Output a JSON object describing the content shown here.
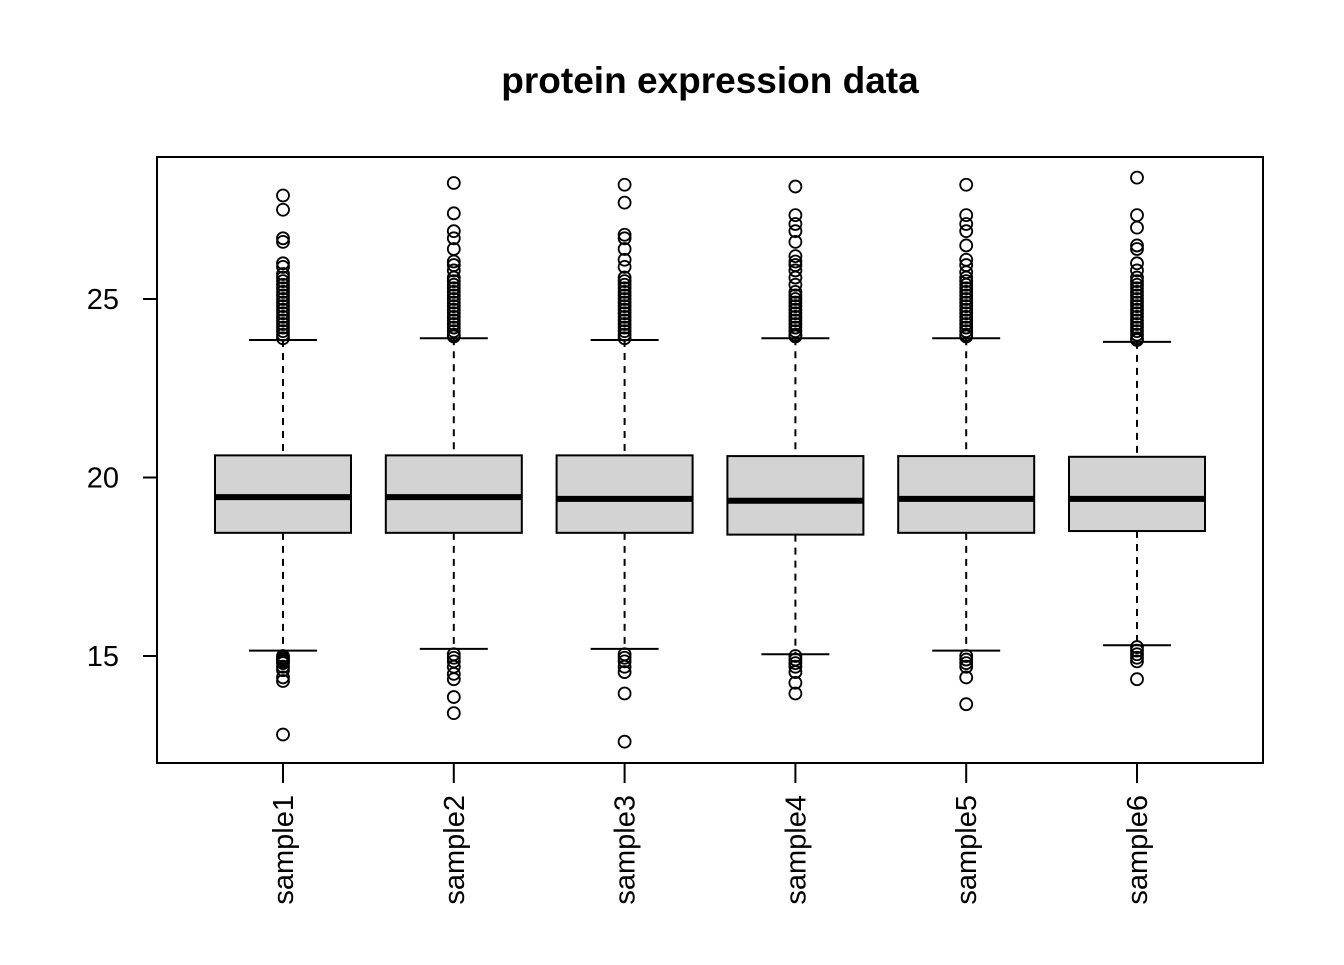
{
  "chart_data": {
    "type": "boxplot",
    "title": "protein expression data",
    "xlabel": "",
    "ylabel": "",
    "ylim": [
      12.3,
      29.3
    ],
    "y_ticks": [
      "15",
      "20",
      "25"
    ],
    "categories": [
      "sample1",
      "sample2",
      "sample3",
      "sample4",
      "sample5",
      "sample6"
    ],
    "box_fill": "#d3d3d3",
    "line_color": "#000000",
    "series": [
      {
        "lower_whisker": 15.15,
        "q1": 18.45,
        "median": 19.45,
        "q3": 20.62,
        "upper_whisker": 23.85,
        "outliers_high": [
          23.9,
          24.0,
          24.1,
          24.2,
          24.3,
          24.4,
          24.5,
          24.6,
          24.7,
          24.8,
          24.9,
          25.0,
          25.1,
          25.2,
          25.3,
          25.4,
          25.5,
          25.6,
          25.7,
          25.9,
          26.0,
          26.6,
          26.7,
          27.5,
          27.9
        ],
        "outliers_low": [
          15.0,
          14.95,
          14.9,
          14.85,
          14.8,
          14.7,
          14.6,
          14.4,
          14.3,
          12.8
        ]
      },
      {
        "lower_whisker": 15.2,
        "q1": 18.45,
        "median": 19.45,
        "q3": 20.62,
        "upper_whisker": 23.9,
        "outliers_high": [
          23.95,
          24.0,
          24.1,
          24.2,
          24.3,
          24.4,
          24.5,
          24.6,
          24.7,
          24.8,
          24.9,
          25.0,
          25.1,
          25.2,
          25.3,
          25.4,
          25.5,
          25.6,
          25.8,
          25.95,
          26.05,
          26.4,
          26.7,
          26.9,
          27.4,
          28.25
        ],
        "outliers_low": [
          15.05,
          14.95,
          14.85,
          14.7,
          14.5,
          14.35,
          13.85,
          13.4
        ]
      },
      {
        "lower_whisker": 15.2,
        "q1": 18.45,
        "median": 19.4,
        "q3": 20.62,
        "upper_whisker": 23.85,
        "outliers_high": [
          23.9,
          24.0,
          24.1,
          24.2,
          24.3,
          24.4,
          24.5,
          24.6,
          24.7,
          24.8,
          24.9,
          25.0,
          25.1,
          25.2,
          25.3,
          25.4,
          25.5,
          25.6,
          25.9,
          26.1,
          26.4,
          26.7,
          26.8,
          27.7,
          28.2
        ],
        "outliers_low": [
          15.05,
          14.95,
          14.85,
          14.7,
          14.55,
          13.95,
          12.6
        ]
      },
      {
        "lower_whisker": 15.05,
        "q1": 18.4,
        "median": 19.35,
        "q3": 20.6,
        "upper_whisker": 23.9,
        "outliers_high": [
          23.95,
          24.0,
          24.1,
          24.2,
          24.3,
          24.4,
          24.5,
          24.6,
          24.7,
          24.8,
          24.9,
          25.0,
          25.1,
          25.2,
          25.4,
          25.6,
          25.8,
          25.95,
          26.05,
          26.2,
          26.6,
          26.9,
          27.1,
          27.35,
          28.15
        ],
        "outliers_low": [
          15.0,
          14.9,
          14.8,
          14.7,
          14.55,
          14.25,
          13.95
        ]
      },
      {
        "lower_whisker": 15.15,
        "q1": 18.45,
        "median": 19.4,
        "q3": 20.6,
        "upper_whisker": 23.9,
        "outliers_high": [
          23.95,
          24.0,
          24.1,
          24.2,
          24.3,
          24.4,
          24.5,
          24.6,
          24.7,
          24.8,
          24.9,
          25.0,
          25.1,
          25.2,
          25.3,
          25.4,
          25.5,
          25.6,
          25.75,
          25.95,
          26.1,
          26.5,
          26.9,
          27.1,
          27.35,
          28.2
        ],
        "outliers_low": [
          15.0,
          14.9,
          14.8,
          14.7,
          14.4,
          13.65
        ]
      },
      {
        "lower_whisker": 15.3,
        "q1": 18.5,
        "median": 19.4,
        "q3": 20.58,
        "upper_whisker": 23.8,
        "outliers_high": [
          23.85,
          23.9,
          24.0,
          24.1,
          24.2,
          24.3,
          24.4,
          24.5,
          24.6,
          24.7,
          24.8,
          24.9,
          25.0,
          25.1,
          25.2,
          25.3,
          25.4,
          25.5,
          25.6,
          25.8,
          26.0,
          26.4,
          26.5,
          27.0,
          27.35,
          28.4
        ],
        "outliers_low": [
          15.25,
          15.15,
          15.05,
          14.95,
          14.85,
          14.35
        ]
      }
    ]
  }
}
